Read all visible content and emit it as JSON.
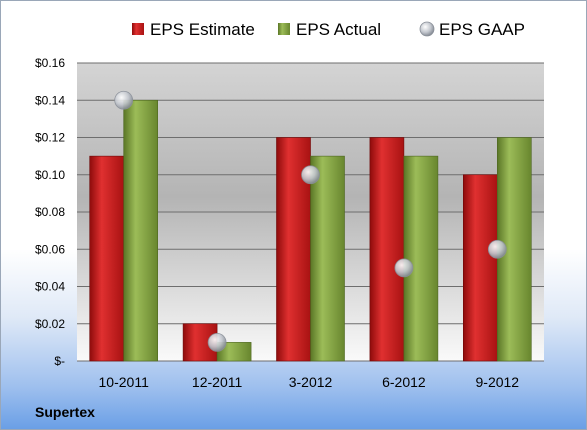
{
  "company": "Supertex",
  "chart_data": {
    "type": "bar",
    "categories": [
      "10-2011",
      "12-2011",
      "3-2012",
      "6-2012",
      "9-2012"
    ],
    "series": [
      {
        "name": "EPS Estimate",
        "type": "bar",
        "color": "#c81e1e",
        "values": [
          0.11,
          0.02,
          0.12,
          0.12,
          0.1
        ]
      },
      {
        "name": "EPS Actual",
        "type": "bar",
        "color": "#7e9c3a",
        "values": [
          0.14,
          0.01,
          0.11,
          0.11,
          0.12
        ]
      },
      {
        "name": "EPS GAAP",
        "type": "scatter",
        "color": "#b9bec6",
        "values": [
          0.14,
          0.01,
          0.1,
          0.05,
          0.06
        ]
      }
    ],
    "ylim": [
      0,
      0.16
    ],
    "yticks": [
      0,
      0.02,
      0.04,
      0.06,
      0.08,
      0.1,
      0.12,
      0.14,
      0.16
    ],
    "ytick_labels": [
      "$-",
      "$0.02",
      "$0.04",
      "$0.06",
      "$0.08",
      "$0.10",
      "$0.12",
      "$0.14",
      "$0.16"
    ],
    "grid": true,
    "legend_position": "top"
  }
}
